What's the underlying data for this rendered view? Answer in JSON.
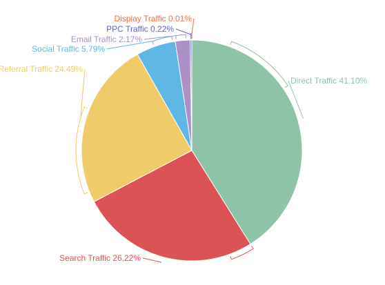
{
  "chart_data": {
    "type": "pie",
    "title": "",
    "start_angle_deg": 0,
    "direction": "clockwise",
    "slices": [
      {
        "label": "Direct Traffic",
        "value": 41.1,
        "value_text": "41.10%",
        "color": "#8ec3a7"
      },
      {
        "label": "Search Traffic",
        "value": 26.22,
        "value_text": "26.22%",
        "color": "#dc5356"
      },
      {
        "label": "Referral Traffic",
        "value": 24.49,
        "value_text": "24.49%",
        "color": "#f0cb69"
      },
      {
        "label": "Social Traffic",
        "value": 5.79,
        "value_text": "5.79%",
        "color": "#5fb7e5"
      },
      {
        "label": "Email Traffic",
        "value": 2.17,
        "value_text": "2.17%",
        "color": "#ab91c5"
      },
      {
        "label": "PPC Traffic",
        "value": 0.22,
        "value_text": "0.22%",
        "color": "#6063d5"
      },
      {
        "label": "Display Traffic",
        "value": 0.01,
        "value_text": "0.01%",
        "color": "#fd6b40"
      }
    ]
  }
}
